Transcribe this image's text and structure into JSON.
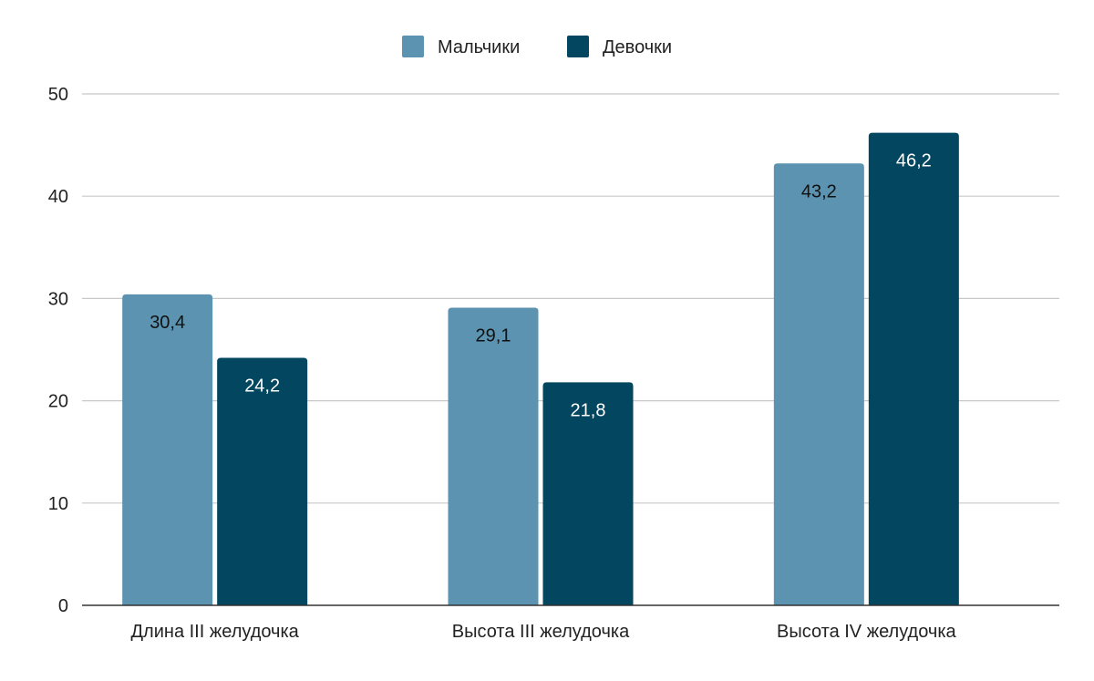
{
  "chart_data": {
    "type": "bar",
    "categories": [
      "Длина III желудочка",
      "Высота III желудочка",
      "Высота IV желудочка"
    ],
    "series": [
      {
        "name": "Мальчики",
        "values": [
          30.4,
          29.1,
          43.2
        ],
        "labels": [
          "30,4",
          "29,1",
          "43,2"
        ],
        "color": "#5b93b0"
      },
      {
        "name": "Девочки",
        "values": [
          24.2,
          21.8,
          46.2
        ],
        "labels": [
          "24,2",
          "21,8",
          "46,2"
        ],
        "color": "#02465f"
      }
    ],
    "yticks": [
      "0",
      "10",
      "20",
      "30",
      "40",
      "50"
    ],
    "ylim": [
      0,
      50
    ],
    "grid": true,
    "legend": "top",
    "title": "",
    "xlabel": "",
    "ylabel": ""
  }
}
